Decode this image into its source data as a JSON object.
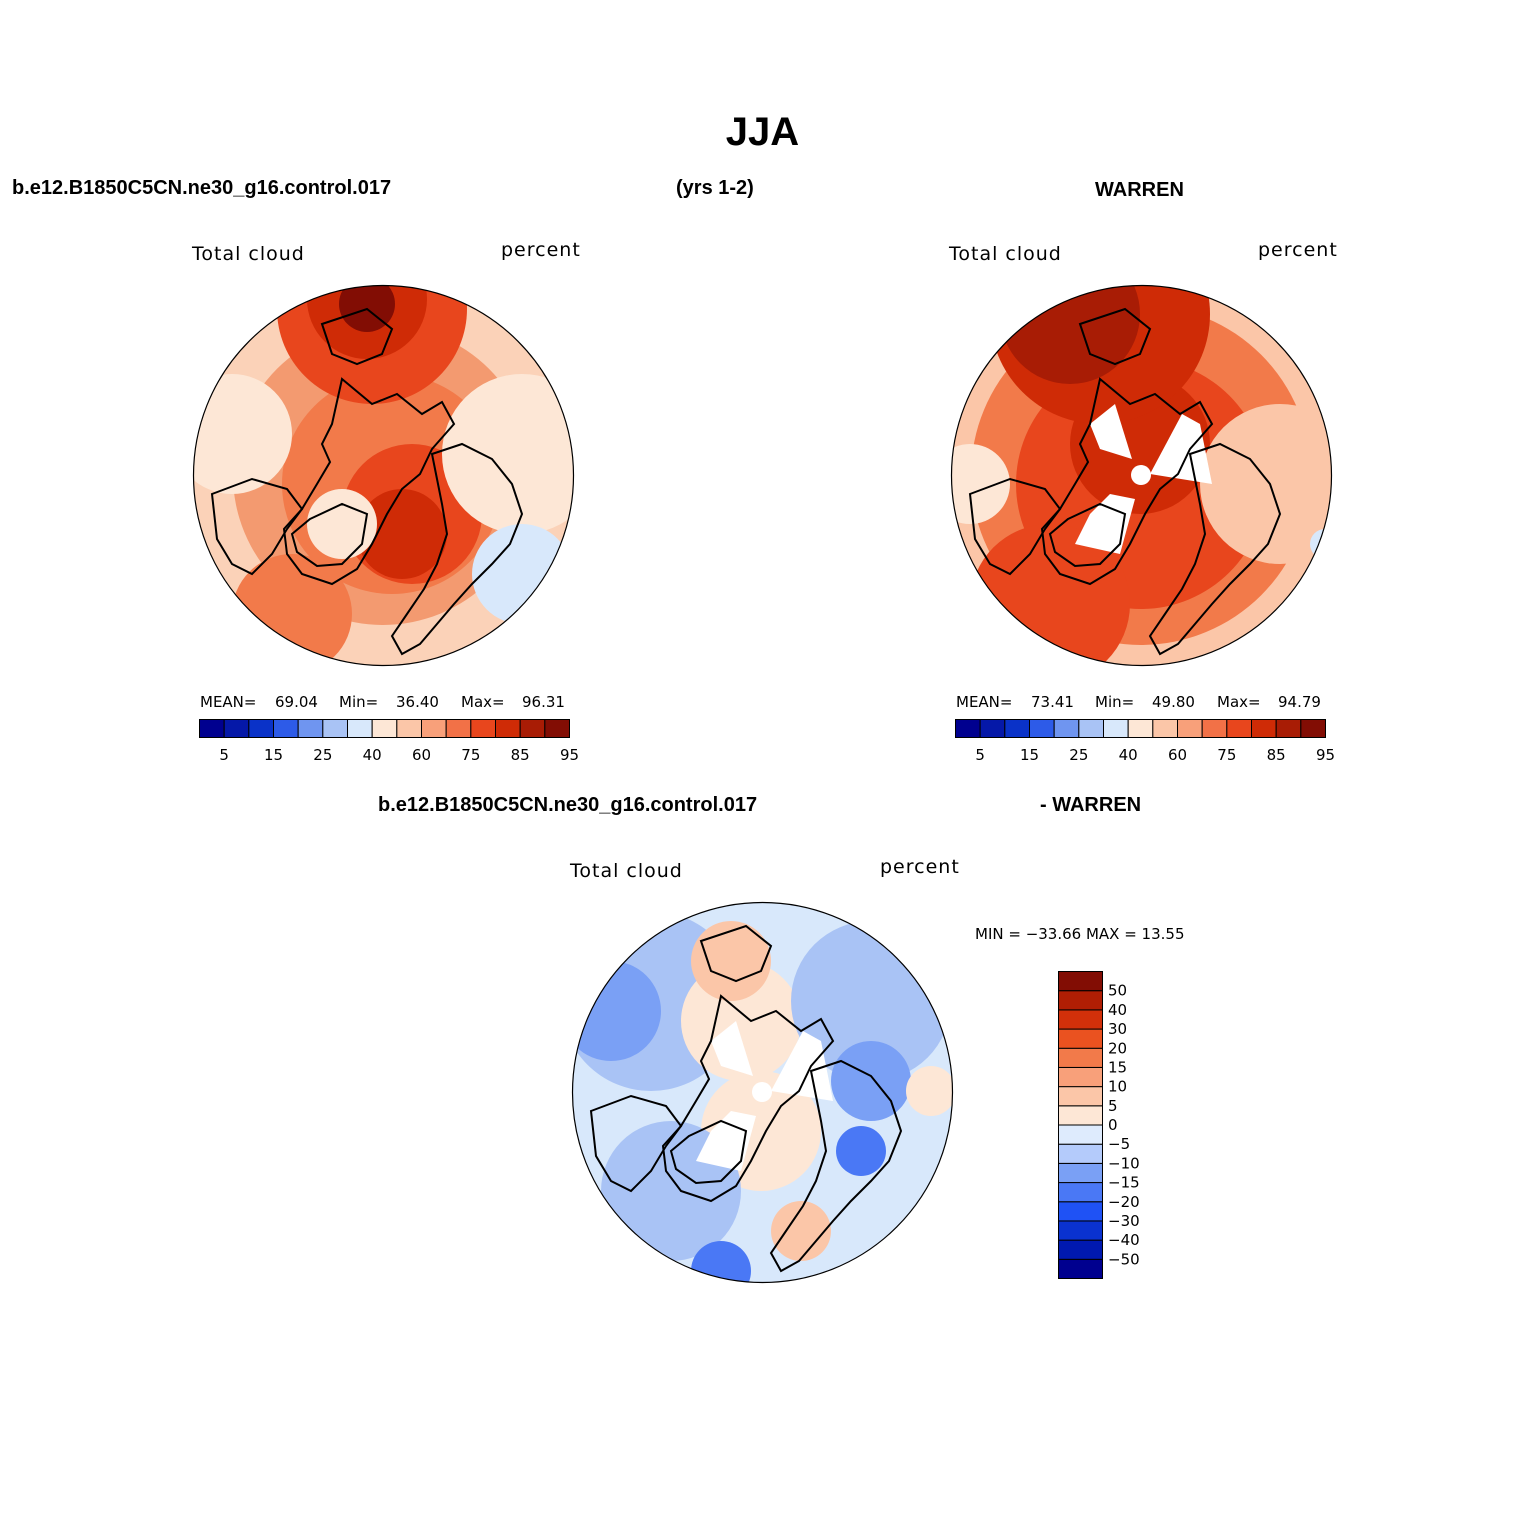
{
  "title": "JJA",
  "top_left_header": "b.e12.B1850C5CN.ne30_g16.control.017",
  "top_center_header": "(yrs 1-2)",
  "top_right_header": "WARREN",
  "bottom_header_left": "b.e12.B1850C5CN.ne30_g16.control.017",
  "bottom_header_right": "- WARREN",
  "panels": [
    {
      "variable": "Total cloud",
      "units": "percent",
      "mean_label": "MEAN=",
      "mean": "69.04",
      "min_label": "Min=",
      "min": "36.40",
      "max_label": "Max=",
      "max": "96.31"
    },
    {
      "variable": "Total cloud",
      "units": "percent",
      "mean_label": "MEAN=",
      "mean": "73.41",
      "min_label": "Min=",
      "min": "49.80",
      "max_label": "Max=",
      "max": "94.79"
    },
    {
      "variable": "Total cloud",
      "units": "percent",
      "minmax_text": "MIN = −33.66 MAX =  13.55"
    }
  ],
  "abs_colorbar": {
    "colors": [
      "#00008f",
      "#0518a8",
      "#0a32c8",
      "#2d5be8",
      "#6f95f0",
      "#a9c3f5",
      "#d8e8fb",
      "#fde7d6",
      "#fbc6a8",
      "#f8a07a",
      "#f27147",
      "#e8461d",
      "#cf2b06",
      "#a81c05",
      "#820d04"
    ],
    "tick_labels": [
      "5",
      "15",
      "25",
      "40",
      "60",
      "75",
      "85",
      "95"
    ]
  },
  "diff_colorbar": {
    "colors": [
      "#00008f",
      "#0019b0",
      "#0a32d0",
      "#1f52f5",
      "#4a78f5",
      "#7aa0f5",
      "#b4cbfb",
      "#deebfd",
      "#fde7d6",
      "#fbc6a8",
      "#f8a07a",
      "#f27a4a",
      "#ea5220",
      "#d2300a",
      "#b01e04",
      "#820d04"
    ],
    "tick_labels": [
      "50",
      "40",
      "30",
      "20",
      "15",
      "10",
      "5",
      "0",
      "−5",
      "−10",
      "−15",
      "−20",
      "−30",
      "−40",
      "−50"
    ]
  }
}
